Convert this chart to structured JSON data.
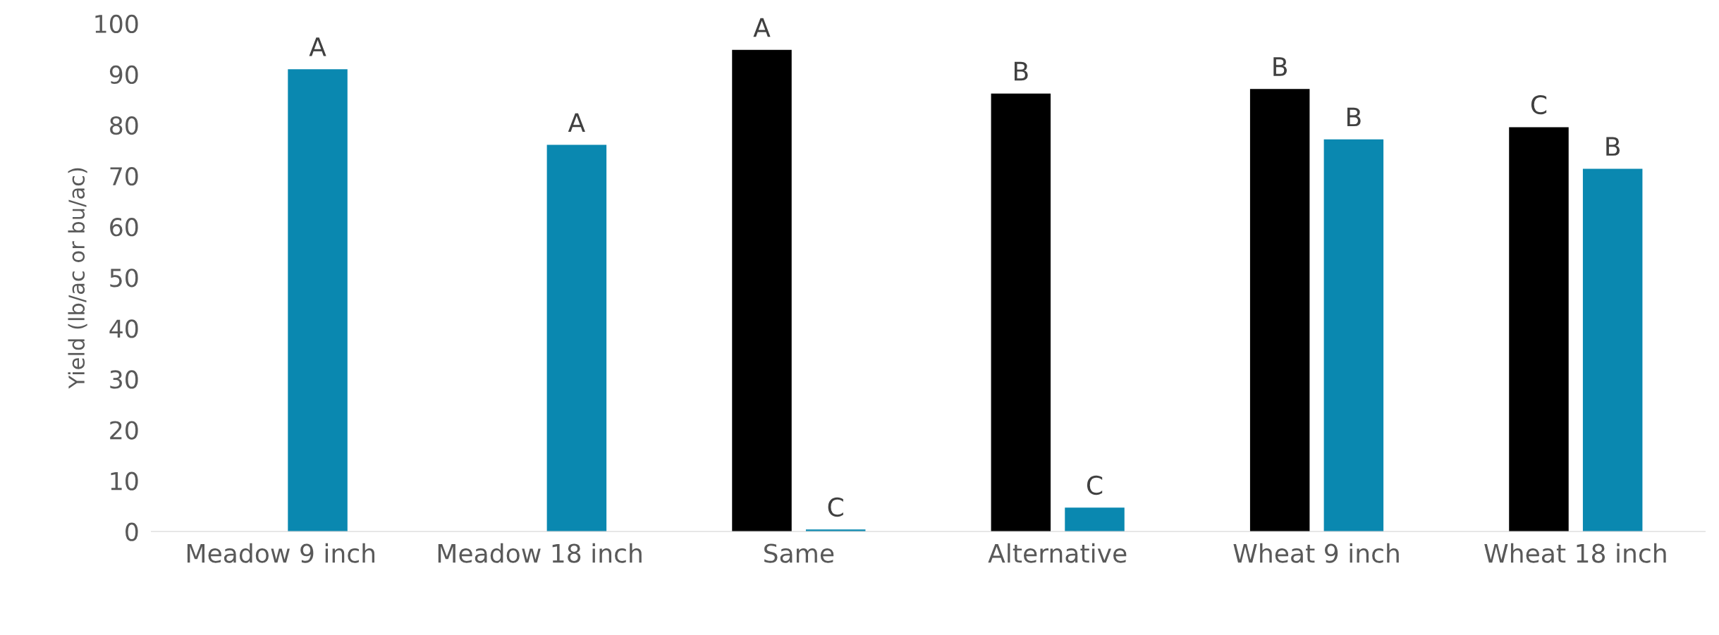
{
  "chart_data": {
    "type": "bar",
    "ylabel": "Yield (lb/ac or bu/ac)",
    "categories": [
      "Meadow 9 inch",
      "Meadow 18 inch",
      "Same",
      "Alternative",
      "Wheat 9 inch",
      "Wheat 18 inch"
    ],
    "series": [
      {
        "color": "#000000",
        "values": [
          null,
          null,
          94.8,
          86.2,
          87.1,
          79.6
        ],
        "value_labels": [
          null,
          null,
          "A",
          "B",
          "B",
          "C"
        ]
      },
      {
        "color": "#0a88b0",
        "values": [
          91.0,
          76.1,
          0.4,
          4.7,
          77.2,
          71.4
        ],
        "value_labels": [
          "A",
          "A",
          "C",
          "C",
          "B",
          "B"
        ]
      }
    ],
    "ylim": [
      0,
      100
    ],
    "yticks": [
      0,
      10,
      20,
      30,
      40,
      50,
      60,
      70,
      80,
      90,
      100
    ],
    "grid": false
  }
}
